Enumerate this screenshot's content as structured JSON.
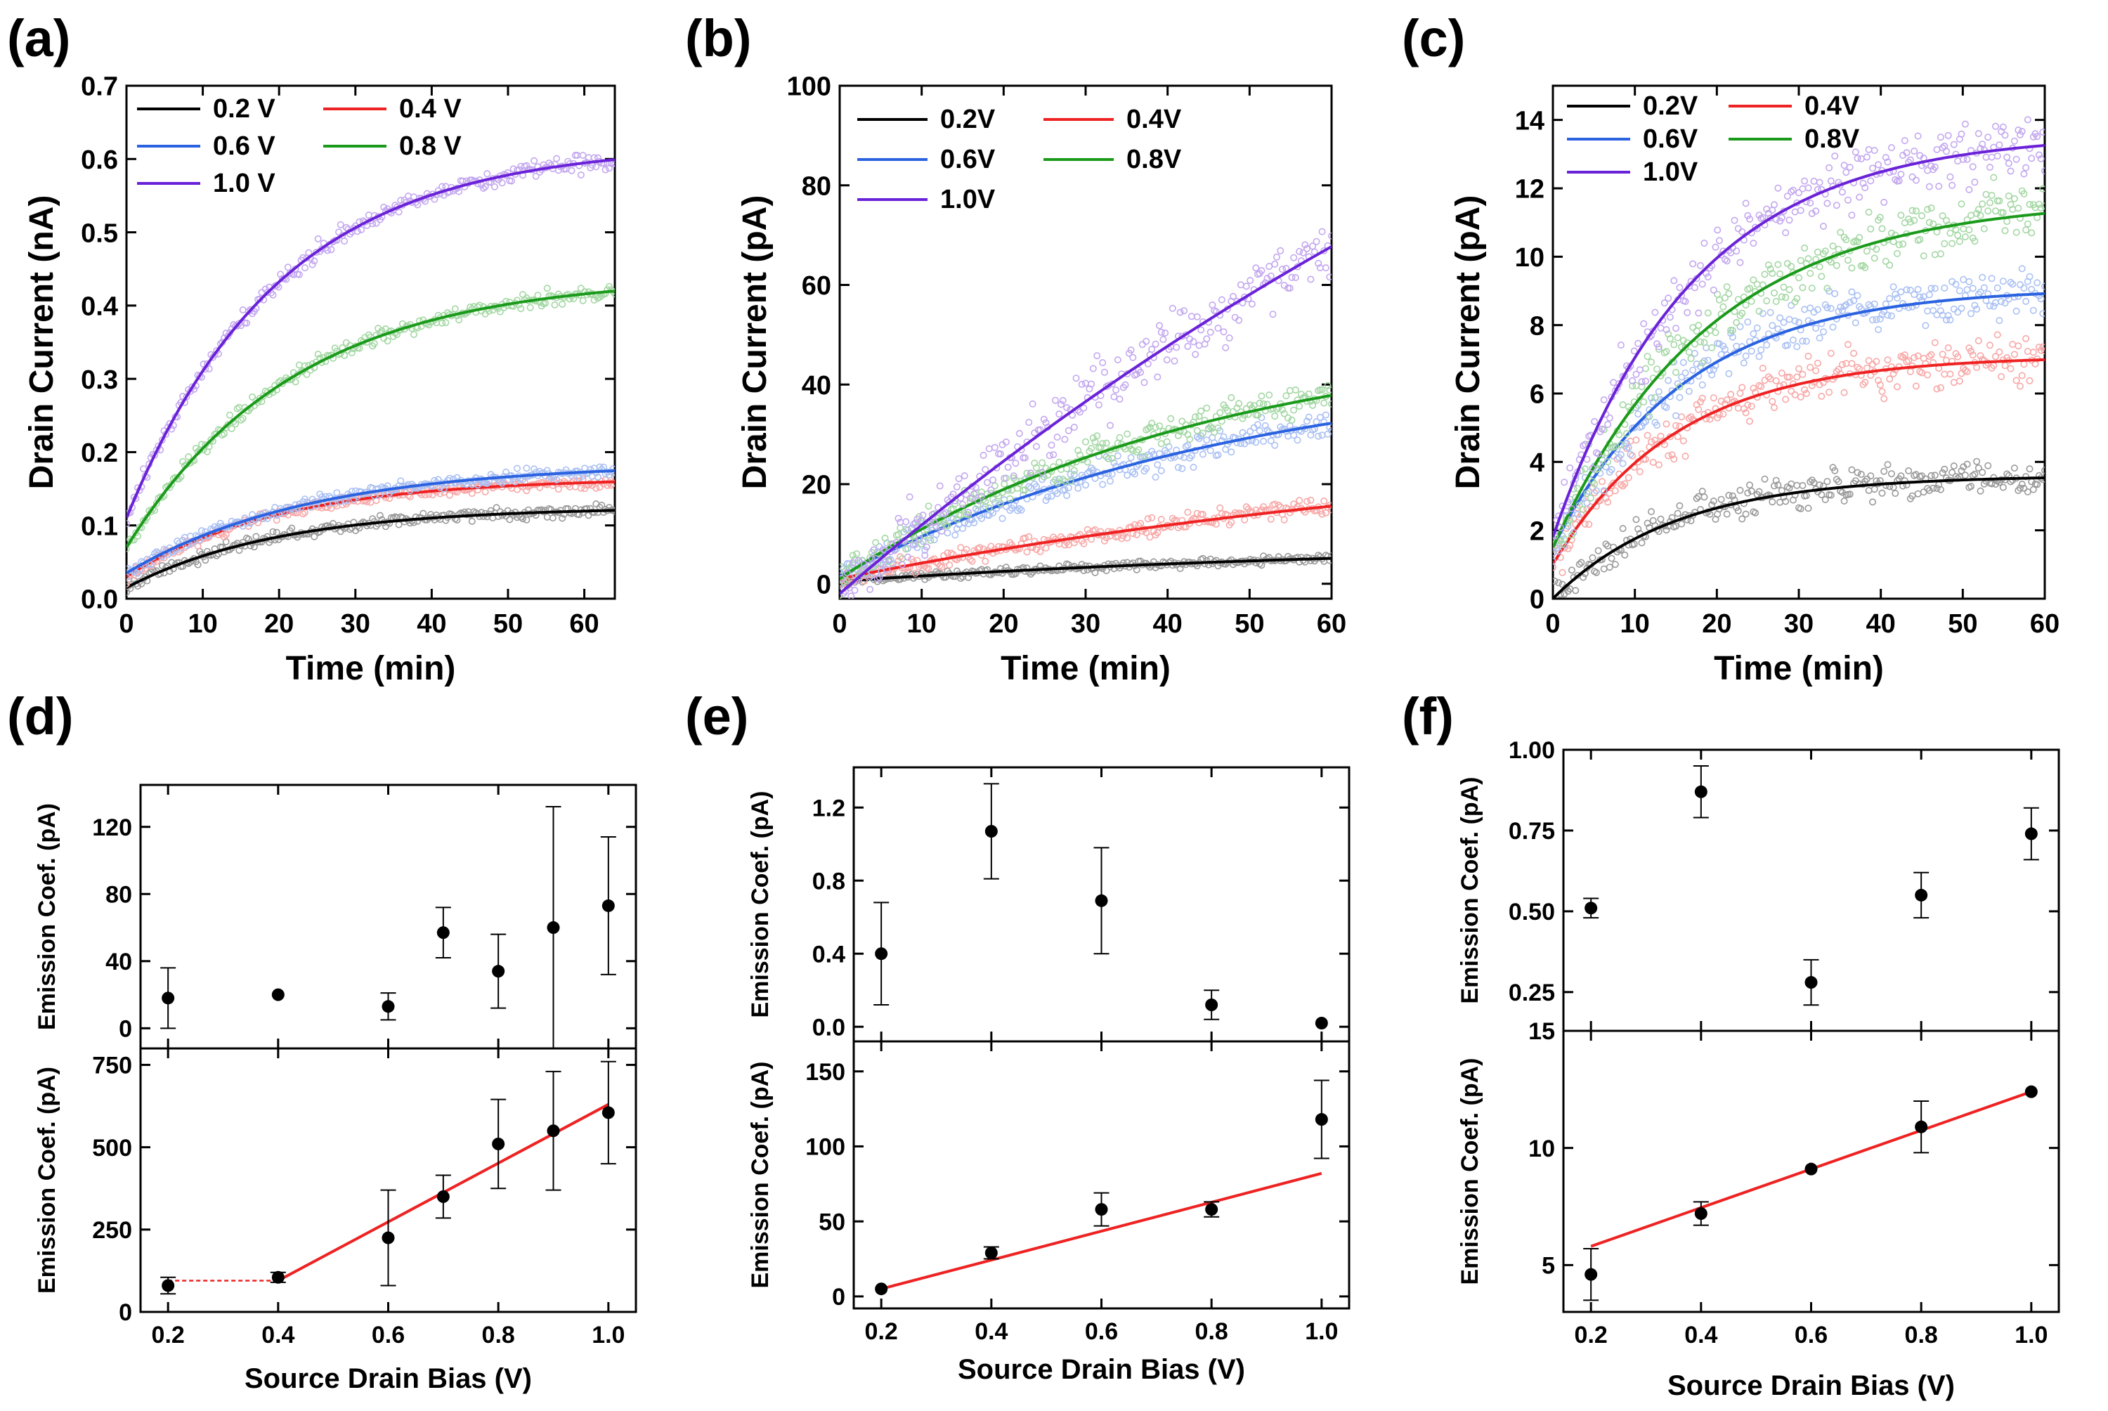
{
  "figure": {
    "panel_labels": [
      "(a)",
      "(b)",
      "(c)",
      "(d)",
      "(e)",
      "(f)"
    ]
  },
  "chart_data": [
    {
      "id": "a",
      "type": "line",
      "label": "(a)",
      "xlabel": "Time (min)",
      "ylabel": "Drain Current (nA)",
      "xlim": [
        0,
        64
      ],
      "ylim": [
        0,
        0.7
      ],
      "xticks": [
        "0",
        "10",
        "20",
        "30",
        "40",
        "50",
        "60"
      ],
      "xtick_values": [
        0,
        10,
        20,
        30,
        40,
        50,
        60
      ],
      "yticks": [
        "0.0",
        "0.1",
        "0.2",
        "0.3",
        "0.4",
        "0.5",
        "0.6",
        "0.7"
      ],
      "ytick_values": [
        0,
        0.1,
        0.2,
        0.3,
        0.4,
        0.5,
        0.6,
        0.7
      ],
      "legend": [
        {
          "name": "0.2 V",
          "color": "#000000"
        },
        {
          "name": "0.4 V",
          "color": "#ee2222"
        },
        {
          "name": "0.6 V",
          "color": "#2a62e0"
        },
        {
          "name": "0.8 V",
          "color": "#1a9a1a"
        },
        {
          "name": "1.0 V",
          "color": "#6a22d8"
        }
      ],
      "series": [
        {
          "name": "0.2 V",
          "color": "#000000",
          "fit": {
            "y0": 0.015,
            "A": 0.11,
            "tau": 20
          },
          "noise": 0.004
        },
        {
          "name": "0.4 V",
          "color": "#ee2222",
          "fit": {
            "y0": 0.03,
            "A": 0.135,
            "tau": 20
          },
          "noise": 0.004
        },
        {
          "name": "0.6 V",
          "color": "#2a62e0",
          "fit": {
            "y0": 0.035,
            "A": 0.15,
            "tau": 24
          },
          "noise": 0.004
        },
        {
          "name": "0.8 V",
          "color": "#1a9a1a",
          "fit": {
            "y0": 0.07,
            "A": 0.37,
            "tau": 22
          },
          "noise": 0.005
        },
        {
          "name": "1.0 V",
          "color": "#6a22d8",
          "fit": {
            "y0": 0.11,
            "A": 0.51,
            "tau": 20
          },
          "noise": 0.006
        }
      ]
    },
    {
      "id": "b",
      "type": "line",
      "label": "(b)",
      "xlabel": "Time (min)",
      "ylabel": "Drain Current (pA)",
      "xlim": [
        0,
        60
      ],
      "ylim": [
        -3,
        100
      ],
      "xticks": [
        "0",
        "10",
        "20",
        "30",
        "40",
        "50",
        "60"
      ],
      "xtick_values": [
        0,
        10,
        20,
        30,
        40,
        50,
        60
      ],
      "yticks": [
        "0",
        "20",
        "40",
        "60",
        "80",
        "100"
      ],
      "ytick_values": [
        0,
        20,
        40,
        60,
        80,
        100
      ],
      "legend": [
        {
          "name": "0.2V",
          "color": "#000000"
        },
        {
          "name": "0.4V",
          "color": "#ee2222"
        },
        {
          "name": "0.6V",
          "color": "#2a62e0"
        },
        {
          "name": "0.8V",
          "color": "#1a9a1a"
        },
        {
          "name": "1.0V",
          "color": "#6a22d8"
        }
      ],
      "series": [
        {
          "name": "0.2V",
          "color": "#000000",
          "fit": {
            "y0": 0.5,
            "A": 8,
            "tau": 70
          },
          "noise": 0.4
        },
        {
          "name": "0.4V",
          "color": "#ee2222",
          "fit": {
            "y0": 1.0,
            "A": 30,
            "tau": 90
          },
          "noise": 0.8
        },
        {
          "name": "0.6V",
          "color": "#2a62e0",
          "fit": {
            "y0": 1.5,
            "A": 44,
            "tau": 50
          },
          "noise": 1.5
        },
        {
          "name": "0.8V",
          "color": "#1a9a1a",
          "fit": {
            "y0": 1.0,
            "A": 50,
            "tau": 45
          },
          "noise": 1.5
        },
        {
          "name": "1.0V",
          "color": "#6a22d8",
          "fit": {
            "y0": -2,
            "A": 200,
            "tau": 140
          },
          "noise": 3.0
        }
      ]
    },
    {
      "id": "c",
      "type": "line",
      "label": "(c)",
      "xlabel": "Time (min)",
      "ylabel": "Drain Current (pA)",
      "xlim": [
        0,
        60
      ],
      "ylim": [
        0,
        15
      ],
      "xticks": [
        "0",
        "10",
        "20",
        "30",
        "40",
        "50",
        "60"
      ],
      "xtick_values": [
        0,
        10,
        20,
        30,
        40,
        50,
        60
      ],
      "yticks": [
        "0",
        "2",
        "4",
        "6",
        "8",
        "10",
        "12",
        "14"
      ],
      "ytick_values": [
        0,
        2,
        4,
        6,
        8,
        10,
        12,
        14
      ],
      "legend": [
        {
          "name": "0.2V",
          "color": "#000000"
        },
        {
          "name": "0.4V",
          "color": "#ee2222"
        },
        {
          "name": "0.6V",
          "color": "#2a62e0"
        },
        {
          "name": "0.8V",
          "color": "#1a9a1a"
        },
        {
          "name": "1.0V",
          "color": "#6a22d8"
        }
      ],
      "series": [
        {
          "name": "0.2V",
          "color": "#000000",
          "fit": {
            "y0": 0.0,
            "A": 3.6,
            "tau": 15
          },
          "noise": 0.25
        },
        {
          "name": "0.4V",
          "color": "#ee2222",
          "fit": {
            "y0": 1.0,
            "A": 6.1,
            "tau": 15
          },
          "noise": 0.35
        },
        {
          "name": "0.6V",
          "color": "#2a62e0",
          "fit": {
            "y0": 1.5,
            "A": 7.6,
            "tau": 16
          },
          "noise": 0.35
        },
        {
          "name": "0.8V",
          "color": "#1a9a1a",
          "fit": {
            "y0": 1.5,
            "A": 10.2,
            "tau": 19
          },
          "noise": 0.45
        },
        {
          "name": "1.0V",
          "color": "#6a22d8",
          "fit": {
            "y0": 1.8,
            "A": 11.8,
            "tau": 17
          },
          "noise": 0.45
        }
      ]
    },
    {
      "id": "d",
      "type": "scatter",
      "label": "(d)",
      "xlabel": "Source Drain Bias (V)",
      "xlim": [
        0.15,
        1.05
      ],
      "xticks": [
        "0.2",
        "0.4",
        "0.6",
        "0.8",
        "1.0"
      ],
      "xtick_values": [
        0.2,
        0.4,
        0.6,
        0.8,
        1.0
      ],
      "top": {
        "ylabel": "Emission Coef. (pA)",
        "ylim": [
          -12,
          145
        ],
        "yticks": [
          "0",
          "40",
          "80",
          "120"
        ],
        "ytick_values": [
          0,
          40,
          80,
          120
        ],
        "points": [
          {
            "x": 0.2,
            "y": 18,
            "err": 18
          },
          {
            "x": 0.4,
            "y": 20,
            "err": 0
          },
          {
            "x": 0.6,
            "y": 13,
            "err": 8
          },
          {
            "x": 0.7,
            "y": 57,
            "err": 15
          },
          {
            "x": 0.8,
            "y": 34,
            "err": 22
          },
          {
            "x": 0.9,
            "y": 60,
            "err": 72
          },
          {
            "x": 1.0,
            "y": 73,
            "err": 41
          }
        ]
      },
      "bottom": {
        "ylabel": "Emission Coef. (pA)",
        "ylim": [
          0,
          800
        ],
        "yticks": [
          "0",
          "250",
          "500",
          "750"
        ],
        "ytick_values": [
          0,
          250,
          500,
          750
        ],
        "points": [
          {
            "x": 0.2,
            "y": 80,
            "err": 25
          },
          {
            "x": 0.4,
            "y": 105,
            "err": 15
          },
          {
            "x": 0.6,
            "y": 225,
            "err": 145
          },
          {
            "x": 0.7,
            "y": 350,
            "err": 65
          },
          {
            "x": 0.8,
            "y": 510,
            "err": 135
          },
          {
            "x": 0.9,
            "y": 550,
            "err": 180
          },
          {
            "x": 1.0,
            "y": 605,
            "err": 155
          }
        ],
        "fit_lines": [
          {
            "x": [
              0.2,
              0.4
            ],
            "y": [
              95,
              95
            ],
            "dashed": true
          },
          {
            "x": [
              0.4,
              1.0
            ],
            "y": [
              95,
              630
            ],
            "dashed": false
          }
        ]
      }
    },
    {
      "id": "e",
      "type": "scatter",
      "label": "(e)",
      "xlabel": "Source Drain Bias (V)",
      "xlim": [
        0.15,
        1.05
      ],
      "xticks": [
        "0.2",
        "0.4",
        "0.6",
        "0.8",
        "1.0"
      ],
      "xtick_values": [
        0.2,
        0.4,
        0.6,
        0.8,
        1.0
      ],
      "top": {
        "ylabel": "Emission Coef. (pA)",
        "ylim": [
          -0.08,
          1.42
        ],
        "yticks": [
          "0.0",
          "0.4",
          "0.8",
          "1.2"
        ],
        "ytick_values": [
          0,
          0.4,
          0.8,
          1.2
        ],
        "points": [
          {
            "x": 0.2,
            "y": 0.4,
            "err": 0.28
          },
          {
            "x": 0.4,
            "y": 1.07,
            "err": 0.26
          },
          {
            "x": 0.6,
            "y": 0.69,
            "err": 0.29
          },
          {
            "x": 0.8,
            "y": 0.12,
            "err": 0.08
          },
          {
            "x": 1.0,
            "y": 0.02,
            "err": 0
          }
        ]
      },
      "bottom": {
        "ylabel": "Emission Coef. (pA)",
        "ylim": [
          -8,
          170
        ],
        "yticks": [
          "0",
          "50",
          "100",
          "150"
        ],
        "ytick_values": [
          0,
          50,
          100,
          150
        ],
        "points": [
          {
            "x": 0.2,
            "y": 5,
            "err": 0
          },
          {
            "x": 0.4,
            "y": 29,
            "err": 4
          },
          {
            "x": 0.6,
            "y": 58,
            "err": 11
          },
          {
            "x": 0.8,
            "y": 58,
            "err": 5
          },
          {
            "x": 1.0,
            "y": 118,
            "err": 26
          }
        ],
        "fit_lines": [
          {
            "x": [
              0.2,
              1.0
            ],
            "y": [
              5,
              82
            ],
            "dashed": false
          }
        ]
      }
    },
    {
      "id": "f",
      "type": "scatter",
      "label": "(f)",
      "xlabel": "Source Drain Bias (V)",
      "xlim": [
        0.15,
        1.05
      ],
      "xticks": [
        "0.2",
        "0.4",
        "0.6",
        "0.8",
        "1.0"
      ],
      "xtick_values": [
        0.2,
        0.4,
        0.6,
        0.8,
        1.0
      ],
      "top": {
        "ylabel": "Emission Coef. (pA)",
        "ylim": [
          0.13,
          1.0
        ],
        "yticks": [
          "0.25",
          "0.50",
          "0.75",
          "1.00"
        ],
        "ytick_values": [
          0.25,
          0.5,
          0.75,
          1.0
        ],
        "points": [
          {
            "x": 0.2,
            "y": 0.51,
            "err": 0.03
          },
          {
            "x": 0.4,
            "y": 0.87,
            "err": 0.08
          },
          {
            "x": 0.6,
            "y": 0.28,
            "err": 0.07
          },
          {
            "x": 0.8,
            "y": 0.55,
            "err": 0.07
          },
          {
            "x": 1.0,
            "y": 0.74,
            "err": 0.08
          }
        ]
      },
      "bottom": {
        "ylabel": "Emission Coef. (pA)",
        "ylim": [
          3,
          15
        ],
        "yticks": [
          "5",
          "10",
          "15"
        ],
        "ytick_values": [
          5,
          10,
          15
        ],
        "points": [
          {
            "x": 0.2,
            "y": 4.6,
            "err": 1.1
          },
          {
            "x": 0.4,
            "y": 7.2,
            "err": 0.5
          },
          {
            "x": 0.6,
            "y": 9.1,
            "err": 0
          },
          {
            "x": 0.8,
            "y": 10.9,
            "err": 1.1
          },
          {
            "x": 1.0,
            "y": 12.4,
            "err": 0
          }
        ],
        "fit_lines": [
          {
            "x": [
              0.2,
              1.0
            ],
            "y": [
              5.8,
              12.4
            ],
            "dashed": false
          }
        ]
      }
    }
  ]
}
